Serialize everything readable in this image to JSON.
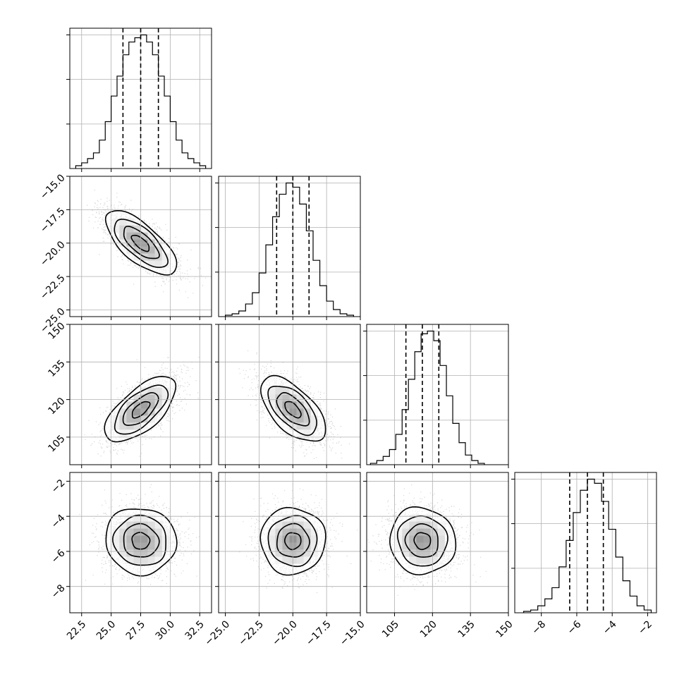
{
  "chart_data": {
    "type": "corner",
    "grid": true,
    "parameters": [
      {
        "range": [
          21.5,
          33.5
        ],
        "ticks": [
          "22.5",
          "25.0",
          "27.5",
          "30.0",
          "32.5"
        ],
        "tick_values": [
          22.5,
          25.0,
          27.5,
          30.0,
          32.5
        ],
        "quantiles": [
          26.0,
          27.5,
          29.0
        ],
        "mean": 27.5,
        "sd": 1.5
      },
      {
        "range": [
          -25.5,
          -15.0
        ],
        "ticks": [
          "-25.0",
          "-22.5",
          "-20.0",
          "-17.5",
          "-15.0"
        ],
        "tick_values": [
          -25.0,
          -22.5,
          -20.0,
          -17.5,
          -15.0
        ],
        "quantiles": [
          -21.2,
          -20.0,
          -18.8
        ],
        "mean": -20.0,
        "sd": 1.2
      },
      {
        "range": [
          94,
          150
        ],
        "ticks": [
          "105",
          "120",
          "135",
          "150"
        ],
        "tick_values": [
          105,
          120,
          135,
          150
        ],
        "quantiles": [
          109.5,
          116.0,
          122.5
        ],
        "mean": 116.0,
        "sd": 6.5
      },
      {
        "range": [
          -9.5,
          -1.5
        ],
        "ticks": [
          "-8",
          "-6",
          "-4",
          "-2"
        ],
        "tick_values": [
          -8,
          -6,
          -4,
          -2
        ],
        "quantiles": [
          -6.4,
          -5.4,
          -4.5
        ],
        "mean": -5.4,
        "sd": 0.95
      }
    ],
    "histograms": [
      {
        "param": 0,
        "bin_edges": [
          22.0,
          22.5,
          23.0,
          23.5,
          24.0,
          24.5,
          25.0,
          25.5,
          26.0,
          26.5,
          27.0,
          27.5,
          28.0,
          28.5,
          29.0,
          29.5,
          30.0,
          30.5,
          31.0,
          31.5,
          32.0,
          32.5,
          33.0
        ],
        "counts": [
          2,
          4,
          7,
          11,
          20,
          33,
          51,
          65,
          80,
          89,
          92,
          94,
          89,
          80,
          65,
          51,
          33,
          20,
          11,
          7,
          4,
          2
        ]
      },
      {
        "param": 1,
        "bin_edges": [
          -25.0,
          -24.5,
          -24.0,
          -23.5,
          -23.0,
          -22.5,
          -22.0,
          -21.5,
          -21.0,
          -20.5,
          -20.0,
          -19.5,
          -19.0,
          -18.5,
          -18.0,
          -17.5,
          -17.0,
          -16.5,
          -16.0,
          -15.5
        ],
        "counts": [
          1,
          2,
          4,
          9,
          17,
          31,
          51,
          71,
          87,
          95,
          92,
          80,
          61,
          40,
          22,
          11,
          5,
          2,
          1
        ]
      },
      {
        "param": 2,
        "bin_edges": [
          95.5,
          98,
          100.5,
          103,
          105.5,
          108,
          110.5,
          113,
          115.5,
          118,
          120.5,
          123,
          125.5,
          128,
          130.5,
          133,
          135.5,
          138,
          140.5
        ],
        "counts": [
          1,
          3,
          6,
          11,
          22,
          40,
          62,
          82,
          95,
          97,
          90,
          72,
          50,
          30,
          16,
          7,
          3,
          1
        ]
      },
      {
        "param": 3,
        "bin_edges": [
          -9.0,
          -8.6,
          -8.2,
          -7.8,
          -7.4,
          -7.0,
          -6.6,
          -6.2,
          -5.8,
          -5.4,
          -5.0,
          -4.6,
          -4.2,
          -3.8,
          -3.4,
          -3.0,
          -2.6,
          -2.2,
          -1.8
        ],
        "counts": [
          1,
          2,
          5,
          10,
          18,
          33,
          52,
          72,
          88,
          96,
          93,
          80,
          60,
          40,
          23,
          12,
          5,
          2
        ]
      }
    ],
    "pairs": [
      {
        "x": 0,
        "y": 1,
        "correlation": -0.7
      },
      {
        "x": 0,
        "y": 2,
        "correlation": 0.65
      },
      {
        "x": 1,
        "y": 2,
        "correlation": -0.6
      },
      {
        "x": 0,
        "y": 3,
        "correlation": -0.05
      },
      {
        "x": 1,
        "y": 3,
        "correlation": 0.0
      },
      {
        "x": 2,
        "y": 3,
        "correlation": -0.05
      }
    ]
  }
}
